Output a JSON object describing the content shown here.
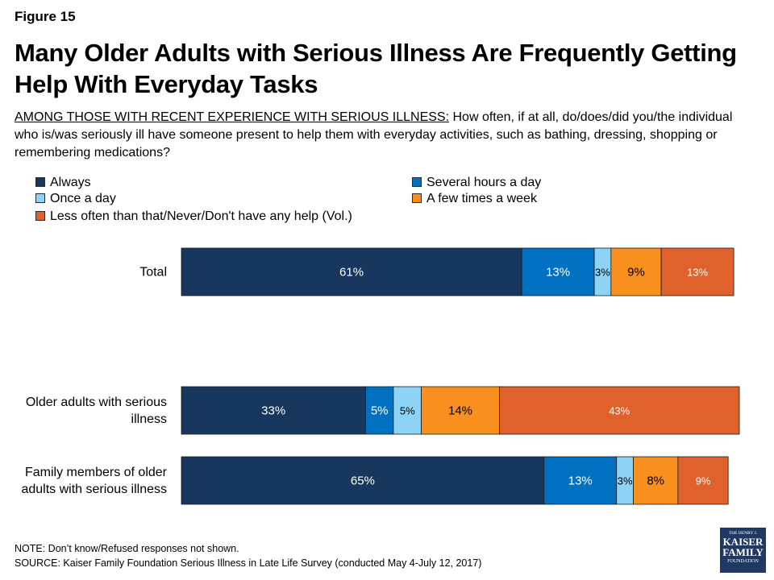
{
  "figure_label": "Figure 15",
  "title": "Many Older Adults with Serious Illness Are Frequently Getting Help With Everyday Tasks",
  "subtitle": {
    "underlined": "AMONG THOSE WITH RECENT EXPERIENCE WITH SERIOUS ILLNESS:",
    "text": " How often, if at all, do/does/did you/the individual who is/was seriously ill have someone present to help them with everyday activities, such as bathing, dressing, shopping or remembering medications?"
  },
  "legend": [
    {
      "label": "Always",
      "color": "#17375e"
    },
    {
      "label": "Several hours a day",
      "color": "#0070c0"
    },
    {
      "label": "Once a day",
      "color": "#8dd3f5"
    },
    {
      "label": "A few times  a week",
      "color": "#f98f1f"
    },
    {
      "label": "Less often than that/Never/Don't have any help (Vol.)",
      "color": "#e0612b"
    }
  ],
  "chart_data": {
    "type": "bar",
    "orientation": "horizontal",
    "stacked": true,
    "categories": [
      "Total",
      "Older adults with serious illness",
      "Family members of older adults with serious illness"
    ],
    "series": [
      {
        "name": "Always",
        "values": [
          61,
          33,
          65
        ],
        "labels": [
          "61%",
          "33%",
          "65%"
        ],
        "color": "#17375e"
      },
      {
        "name": "Several hours a day",
        "values": [
          13,
          5,
          13
        ],
        "labels": [
          "13%",
          "5%",
          "13%"
        ],
        "color": "#0070c0"
      },
      {
        "name": "Once a day",
        "values": [
          3,
          5,
          3
        ],
        "labels": [
          "3%",
          "5%",
          "3%"
        ],
        "color": "#8dd3f5"
      },
      {
        "name": "A few times  a week",
        "values": [
          9,
          14,
          8
        ],
        "labels": [
          "9%",
          "14%",
          "8%"
        ],
        "color": "#f98f1f"
      },
      {
        "name": "Less often than that/Never/Don't have any help (Vol.)",
        "values": [
          13,
          43,
          9
        ],
        "labels": [
          "13%",
          "43%",
          "9%"
        ],
        "color": "#e0612b"
      }
    ],
    "xlim": [
      0,
      100
    ],
    "xlabel": "",
    "ylabel": "",
    "grid": false,
    "legend_position": "top"
  },
  "note": "NOTE: Don’t know/Refused responses not shown.",
  "source": "SOURCE: Kaiser Family Foundation Serious Illness in Late Life Survey (conducted May 4-July 12, 2017)",
  "logo": {
    "line1": "THE HENRY J.",
    "line2": "KAISER",
    "line3": "FAMILY",
    "line4": "FOUNDATION"
  }
}
